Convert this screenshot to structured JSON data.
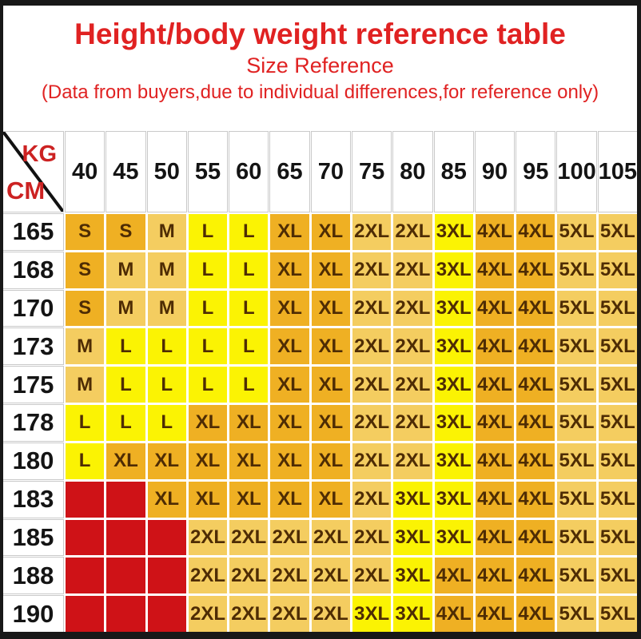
{
  "title": {
    "main": "Height/body weight reference table",
    "subtitle": "Size Reference",
    "note": "(Data from buyers,due to individual differences,for reference only)"
  },
  "table": {
    "corner_kg": "KG",
    "corner_cm": "CM"
  },
  "palette": {
    "gold": "#EFB023",
    "lightgold": "#F4CD60",
    "yellow": "#FBF303",
    "red": "#CF1217",
    "title_red": "#E02222",
    "corner_red": "#CC2222",
    "cell_text": "#4E2C04",
    "frame_dark": "#181818"
  },
  "size_color_map": {
    "S": "gold",
    "M": "lightgold",
    "L": "yellow",
    "XL": "gold",
    "2XL": "lightgold",
    "3XL": "yellow",
    "4XL": "gold",
    "5XL": "lightgold",
    "empty": "red"
  },
  "chart_data": {
    "type": "table",
    "title": "Height/body weight reference table",
    "subtitle": "Size Reference",
    "note": "(Data from buyers,due to individual differences,for reference only)",
    "column_axis_label": "KG",
    "row_axis_label": "CM",
    "columns_weight_kg": [
      "40",
      "45",
      "50",
      "55",
      "60",
      "65",
      "70",
      "75",
      "80",
      "85",
      "90",
      "95",
      "100",
      "105"
    ],
    "rows_height_cm": [
      "165",
      "168",
      "170",
      "173",
      "175",
      "178",
      "180",
      "183",
      "185",
      "188",
      "190"
    ],
    "values": [
      [
        "S",
        "S",
        "M",
        "L",
        "L",
        "XL",
        "XL",
        "2XL",
        "2XL",
        "3XL",
        "4XL",
        "4XL",
        "5XL",
        "5XL"
      ],
      [
        "S",
        "M",
        "M",
        "L",
        "L",
        "XL",
        "XL",
        "2XL",
        "2XL",
        "3XL",
        "4XL",
        "4XL",
        "5XL",
        "5XL"
      ],
      [
        "S",
        "M",
        "M",
        "L",
        "L",
        "XL",
        "XL",
        "2XL",
        "2XL",
        "3XL",
        "4XL",
        "4XL",
        "5XL",
        "5XL"
      ],
      [
        "M",
        "L",
        "L",
        "L",
        "L",
        "XL",
        "XL",
        "2XL",
        "2XL",
        "3XL",
        "4XL",
        "4XL",
        "5XL",
        "5XL"
      ],
      [
        "M",
        "L",
        "L",
        "L",
        "L",
        "XL",
        "XL",
        "2XL",
        "2XL",
        "3XL",
        "4XL",
        "4XL",
        "5XL",
        "5XL"
      ],
      [
        "L",
        "L",
        "L",
        "XL",
        "XL",
        "XL",
        "XL",
        "2XL",
        "2XL",
        "3XL",
        "4XL",
        "4XL",
        "5XL",
        "5XL"
      ],
      [
        "L",
        "XL",
        "XL",
        "XL",
        "XL",
        "XL",
        "XL",
        "2XL",
        "2XL",
        "3XL",
        "4XL",
        "4XL",
        "5XL",
        "5XL"
      ],
      [
        null,
        null,
        "XL",
        "XL",
        "XL",
        "XL",
        "XL",
        "2XL",
        "3XL",
        "3XL",
        "4XL",
        "4XL",
        "5XL",
        "5XL"
      ],
      [
        null,
        null,
        null,
        "2XL",
        "2XL",
        "2XL",
        "2XL",
        "2XL",
        "3XL",
        "3XL",
        "4XL",
        "4XL",
        "5XL",
        "5XL"
      ],
      [
        null,
        null,
        null,
        "2XL",
        "2XL",
        "2XL",
        "2XL",
        "2XL",
        "3XL",
        "4XL",
        "4XL",
        "4XL",
        "5XL",
        "5XL"
      ],
      [
        null,
        null,
        null,
        "2XL",
        "2XL",
        "2XL",
        "2XL",
        "3XL",
        "3XL",
        "4XL",
        "4XL",
        "4XL",
        "5XL",
        "5XL"
      ]
    ]
  }
}
